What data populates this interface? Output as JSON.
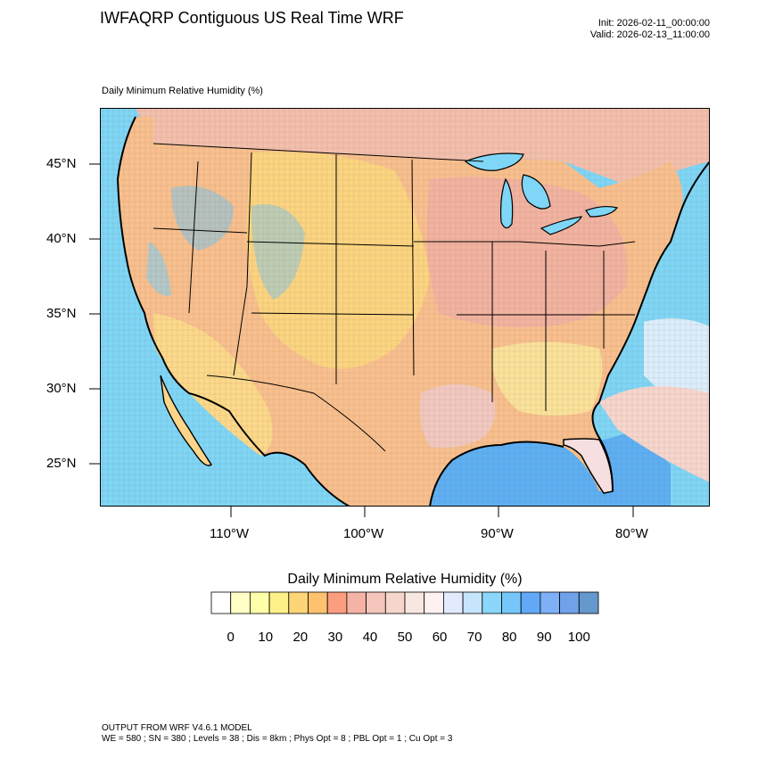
{
  "header": {
    "title": "IWFAQRP Contiguous US Real Time WRF",
    "init": "Init: 2026-02-11_00:00:00",
    "valid": "Valid: 2026-02-13_11:00:00"
  },
  "map": {
    "field_label": "Daily Minimum Relative Humidity   (%)",
    "lat_labels": [
      "45°N",
      "40°N",
      "35°N",
      "30°N",
      "25°N"
    ],
    "lon_labels": [
      "110°W",
      "100°W",
      "90°W",
      "80°W"
    ],
    "colors": {
      "ocean": "#7fd6f6",
      "deep_ocean": "#4aa0f0",
      "dry": "#fcd27a",
      "mid": "#f6b39a",
      "moist": "#f7d8cf",
      "border": "#000000"
    }
  },
  "legend": {
    "title": "Daily Minimum Relative Humidity  (%)",
    "tick_labels": [
      "0",
      "10",
      "20",
      "30",
      "40",
      "50",
      "60",
      "70",
      "80",
      "90",
      "100"
    ],
    "colors": [
      "#ffffff",
      "#ffffc6",
      "#ffffaa",
      "#fef088",
      "#fdd577",
      "#fdc170",
      "#fb9e80",
      "#f4b3a5",
      "#f4c5ba",
      "#f6d6cc",
      "#f8e6e1",
      "#fef1f1",
      "#e2eafd",
      "#c6e4fb",
      "#8ad7fb",
      "#75c7f9",
      "#61a9f6",
      "#7db0f7",
      "#70a1e9",
      "#6598cc"
    ]
  },
  "footer": {
    "line1": "OUTPUT FROM WRF V4.6.1 MODEL",
    "line2": "WE = 580 ; SN = 380 ; Levels = 38 ; Dis = 8km ; Phys Opt = 8 ; PBL Opt = 1 ; Cu Opt = 3"
  }
}
